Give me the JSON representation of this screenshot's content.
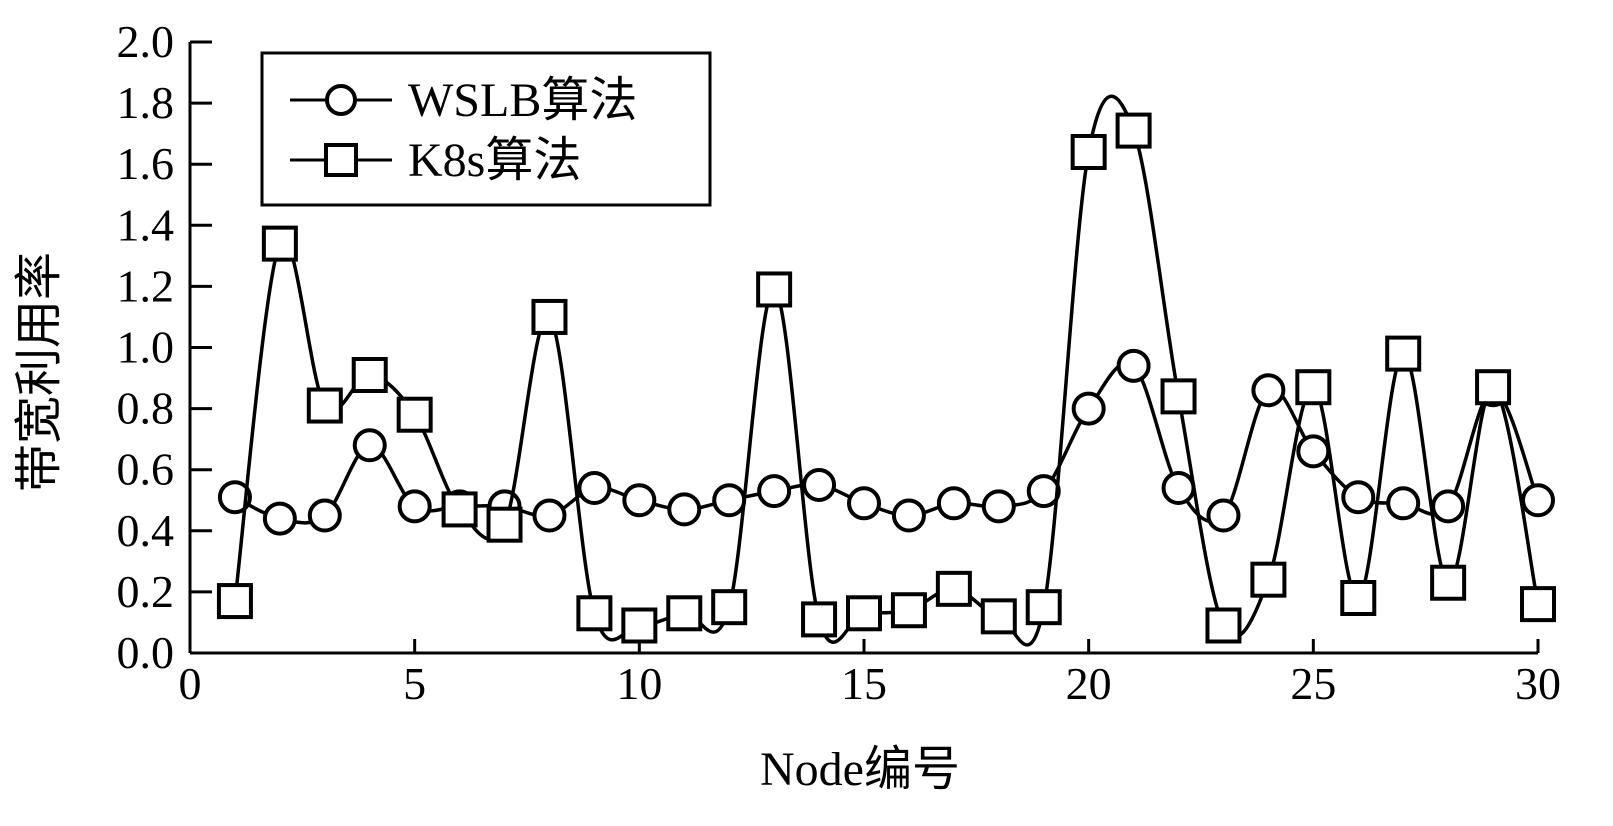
{
  "chart_data": {
    "type": "line",
    "xlabel": "Node编号",
    "ylabel": "带宽利用率",
    "xlim": [
      0,
      30
    ],
    "ylim": [
      0.0,
      2.0
    ],
    "xticks": [
      0,
      5,
      10,
      15,
      20,
      25,
      30
    ],
    "yticks": [
      "0.0",
      "0.2",
      "0.4",
      "0.6",
      "0.8",
      "1.0",
      "1.2",
      "1.4",
      "1.6",
      "1.8",
      "2.0"
    ],
    "grid": false,
    "legend_position": "top-left",
    "line_color": "#000000",
    "x": [
      1,
      2,
      3,
      4,
      5,
      6,
      7,
      8,
      9,
      10,
      11,
      12,
      13,
      14,
      15,
      16,
      17,
      18,
      19,
      20,
      21,
      22,
      23,
      24,
      25,
      26,
      27,
      28,
      29,
      30
    ],
    "series": [
      {
        "name": "WSLB算法",
        "marker": "circle",
        "values": [
          0.51,
          0.44,
          0.45,
          0.68,
          0.48,
          0.48,
          0.48,
          0.45,
          0.54,
          0.5,
          0.47,
          0.5,
          0.53,
          0.55,
          0.49,
          0.45,
          0.49,
          0.48,
          0.53,
          0.8,
          0.94,
          0.54,
          0.45,
          0.86,
          0.66,
          0.51,
          0.49,
          0.48,
          0.86,
          0.5
        ]
      },
      {
        "name": "K8s算法",
        "marker": "square",
        "values": [
          0.17,
          1.34,
          0.81,
          0.91,
          0.78,
          0.47,
          0.42,
          1.1,
          0.13,
          0.09,
          0.13,
          0.15,
          1.19,
          0.11,
          0.13,
          0.14,
          0.21,
          0.12,
          0.15,
          1.64,
          1.71,
          0.84,
          0.09,
          0.24,
          0.87,
          0.18,
          0.98,
          0.23,
          0.87,
          0.16
        ]
      }
    ]
  }
}
